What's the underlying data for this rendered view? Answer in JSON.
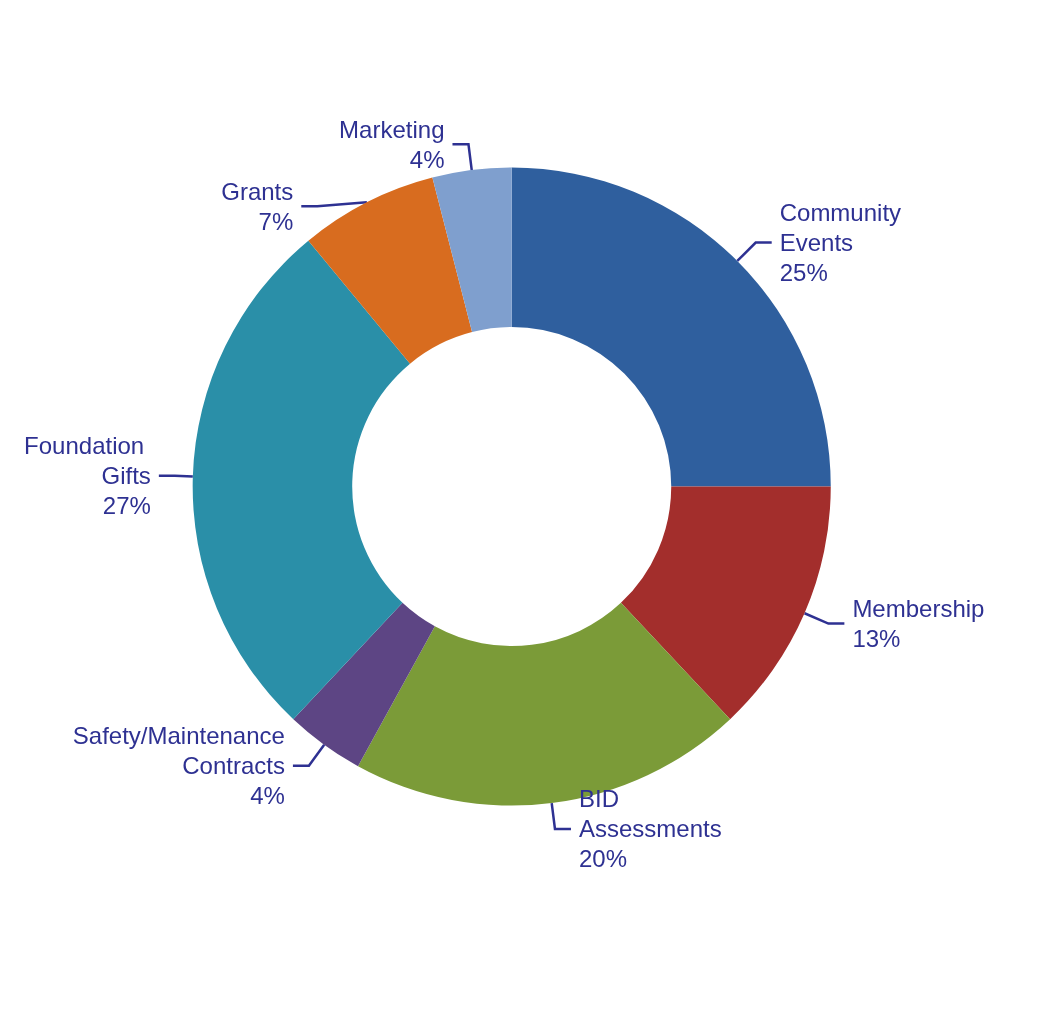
{
  "chart_data": {
    "type": "donut",
    "categories": [
      "Community Events",
      "Membership",
      "BID Assessments",
      "Safety/Maintenance Contracts",
      "Foundation Gifts",
      "Grants",
      "Marketing"
    ],
    "values": [
      25,
      13,
      20,
      4,
      27,
      7,
      4
    ],
    "colors": [
      "#2f5f9e",
      "#a32e2c",
      "#7b9b38",
      "#5d4584",
      "#2a8fa8",
      "#d86c1f",
      "#7f9fce"
    ],
    "value_labels": [
      "25%",
      "13%",
      "20%",
      "4%",
      "27%",
      "7%",
      "4%"
    ],
    "legend": false
  }
}
